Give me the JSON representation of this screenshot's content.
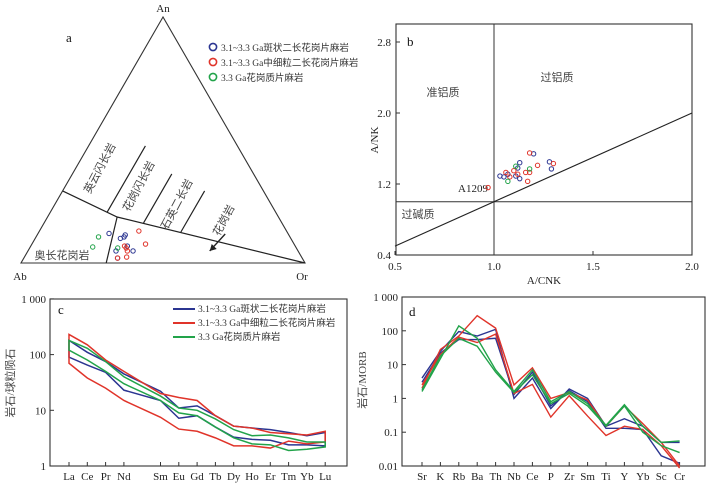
{
  "colors": {
    "blue": "#2b3591",
    "red": "#e0342a",
    "green": "#22a34a"
  },
  "legend": [
    "3.1~3.3 Ga斑状二长花岗片麻岩",
    "3.1~3.3 Ga中细粒二长花岗片麻岩",
    "3.3 Ga花岗质片麻岩"
  ],
  "chart_data": [
    {
      "panel": "a",
      "type": "scatter",
      "subtype": "ternary",
      "apices": {
        "top": "An",
        "left": "Ab",
        "right": "Or"
      },
      "field_labels": [
        "英云闪长岩",
        "花岗闪长岩",
        "石英二长岩",
        "花岗岩",
        "奥长花岗岩"
      ],
      "boundaries_An_Or": [
        [
          [
            0.293,
            0.0
          ],
          [
            0.187,
            0.245
          ],
          [
            0.0,
            1.0
          ]
        ],
        [
          [
            0.187,
            0.245
          ],
          [
            0.0,
            0.3
          ]
        ],
        [
          [
            0.207,
            0.2
          ],
          [
            0.476,
            0.2
          ]
        ],
        [
          [
            0.163,
            0.35
          ],
          [
            0.362,
            0.35
          ]
        ],
        [
          [
            0.126,
            0.5
          ],
          [
            0.293,
            0.5
          ]
        ]
      ],
      "arrow_An_Or": [
        [
          0.118,
          0.66
        ],
        [
          0.049,
          0.64
        ]
      ],
      "series": [
        {
          "name": "3.1~3.3 Ga斑状二长花岗片麻岩",
          "color": "blue",
          "points_An_Or": [
            [
              0.12,
              0.25
            ],
            [
              0.1,
              0.3
            ],
            [
              0.106,
              0.31
            ],
            [
              0.114,
              0.31
            ],
            [
              0.069,
              0.34
            ],
            [
              0.049,
              0.31
            ],
            [
              0.049,
              0.37
            ],
            [
              0.02,
              0.33
            ]
          ]
        },
        {
          "name": "3.1~3.3 Ga中细粒二长花岗片麻岩",
          "color": "red",
          "points_An_Or": [
            [
              0.13,
              0.35
            ],
            [
              0.077,
              0.4
            ],
            [
              0.069,
              0.33
            ],
            [
              0.061,
              0.34
            ],
            [
              0.049,
              0.35
            ],
            [
              0.024,
              0.36
            ],
            [
              0.02,
              0.33
            ]
          ]
        },
        {
          "name": "3.3 Ga花岗质片麻岩",
          "color": "green",
          "points_An_Or": [
            [
              0.106,
              0.22
            ],
            [
              0.065,
              0.22
            ],
            [
              0.061,
              0.31
            ]
          ]
        }
      ]
    },
    {
      "panel": "b",
      "type": "scatter",
      "xlabel": "A/CNK",
      "ylabel": "A/NK",
      "xlim": [
        0.5,
        2.0
      ],
      "ylim": [
        0.4,
        3.0
      ],
      "xticks": [
        "0.5",
        "1.0",
        "1.5",
        "2.0"
      ],
      "yticks": [
        "0.4",
        "1.2",
        "2.0",
        "2.8"
      ],
      "field_labels": [
        "准铝质",
        "过铝质",
        "过碱质"
      ],
      "annotation": "A1209",
      "series": [
        {
          "name": "3.1~3.3 Ga斑状二长花岗片麻岩",
          "color": "blue",
          "points": [
            [
              1.03,
              1.29
            ],
            [
              1.05,
              1.28
            ],
            [
              1.07,
              1.31
            ],
            [
              1.11,
              1.29
            ],
            [
              1.13,
              1.26
            ],
            [
              1.12,
              1.38
            ],
            [
              1.13,
              1.44
            ],
            [
              1.2,
              1.54
            ],
            [
              1.28,
              1.45
            ],
            [
              1.29,
              1.37
            ]
          ]
        },
        {
          "name": "3.1~3.3 Ga中细粒二长花岗片麻岩",
          "color": "red",
          "points": [
            [
              0.97,
              1.16
            ],
            [
              1.06,
              1.33
            ],
            [
              1.08,
              1.28
            ],
            [
              1.1,
              1.35
            ],
            [
              1.12,
              1.31
            ],
            [
              1.16,
              1.33
            ],
            [
              1.18,
              1.33
            ],
            [
              1.17,
              1.23
            ],
            [
              1.18,
              1.55
            ],
            [
              1.22,
              1.41
            ],
            [
              1.3,
              1.43
            ]
          ]
        },
        {
          "name": "3.3 Ga花岗质片麻岩",
          "color": "green",
          "points": [
            [
              1.11,
              1.4
            ],
            [
              1.18,
              1.37
            ],
            [
              1.07,
              1.23
            ]
          ]
        }
      ]
    },
    {
      "panel": "c",
      "type": "line",
      "yscale": "log",
      "ylabel": "岩石/球粒陨石",
      "ylim": [
        1,
        1000
      ],
      "yticks": [
        "1",
        "10",
        "100",
        "1 000"
      ],
      "categories": [
        "La",
        "Ce",
        "Pr",
        "Nd",
        "Sm",
        "Eu",
        "Gd",
        "Tb",
        "Dy",
        "Ho",
        "Er",
        "Tm",
        "Yb",
        "Lu"
      ],
      "positions": [
        0,
        1,
        2,
        3,
        5,
        6,
        7,
        8,
        9,
        10,
        11,
        12,
        13,
        14
      ],
      "series": [
        {
          "name": "3.1~3.3 Ga斑状二长花岗片麻岩",
          "color": "blue",
          "upper": [
            180,
            110,
            75,
            45,
            22,
            11,
            12,
            8,
            5.2,
            4.8,
            4.5,
            4,
            3.5,
            4
          ],
          "lower": [
            90,
            65,
            48,
            23,
            15,
            7.2,
            8,
            5,
            3.3,
            3,
            2.9,
            2.4,
            2.4,
            2.3
          ]
        },
        {
          "name": "3.1~3.3 Ga中细粒二长花岗片麻岩",
          "color": "red",
          "upper": [
            230,
            150,
            80,
            50,
            20,
            17,
            15,
            8,
            5.2,
            4.8,
            4,
            3.8,
            3.6,
            4.2
          ],
          "lower": [
            70,
            38,
            25,
            15,
            7.5,
            4.6,
            4.2,
            3.2,
            2.3,
            2.3,
            2.1,
            2.8,
            2.5,
            2.7
          ]
        },
        {
          "name": "3.3 Ga花岗质片麻岩",
          "color": "green",
          "upper": [
            180,
            130,
            75,
            40,
            18,
            11,
            10,
            7,
            4.5,
            3.5,
            3.6,
            3.2,
            2.7,
            2.7
          ],
          "lower": [
            120,
            80,
            50,
            30,
            15,
            9,
            8,
            5,
            3.2,
            2.5,
            2.4,
            1.9,
            2,
            2.2
          ]
        }
      ]
    },
    {
      "panel": "d",
      "type": "line",
      "yscale": "log",
      "ylabel": "岩石/MORB",
      "ylim": [
        0.01,
        1000
      ],
      "yticks": [
        "0.01",
        "0.1",
        "1",
        "10",
        "100",
        "1 000"
      ],
      "categories": [
        "Sr",
        "K",
        "Rb",
        "Ba",
        "Th",
        "Nb",
        "Ce",
        "P",
        "Zr",
        "Sm",
        "Ti",
        "Y",
        "Yb",
        "Sc",
        "Cr"
      ],
      "series": [
        {
          "name": "blue-1",
          "color": "blue",
          "values": [
            4,
            25,
            95,
            70,
            110,
            1.0,
            4,
            0.5,
            1.9,
            1.0,
            0.15,
            0.25,
            0.15,
            0.05,
            0.05
          ]
        },
        {
          "name": "blue-2",
          "color": "blue",
          "values": [
            3,
            22,
            55,
            55,
            60,
            1.3,
            6,
            0.6,
            1.7,
            0.8,
            0.13,
            0.13,
            0.12,
            0.02,
            0.012
          ]
        },
        {
          "name": "red-1",
          "color": "red",
          "values": [
            2,
            28,
            70,
            280,
            120,
            2.5,
            8,
            1.0,
            1.5,
            0.9,
            0.15,
            0.6,
            0.18,
            0.05,
            0.01
          ]
        },
        {
          "name": "red-2",
          "color": "red",
          "values": [
            2.5,
            20,
            65,
            45,
            80,
            1.4,
            2.6,
            0.28,
            1.2,
            0.3,
            0.08,
            0.15,
            0.12,
            0.04,
            0.008
          ]
        },
        {
          "name": "green-1",
          "color": "green",
          "values": [
            1.6,
            15,
            140,
            60,
            7,
            1.6,
            7,
            0.8,
            1.6,
            0.7,
            0.16,
            0.65,
            0.15,
            0.05,
            0.055
          ]
        },
        {
          "name": "green-2",
          "color": "green",
          "values": [
            1.8,
            18,
            60,
            35,
            6,
            1.5,
            5,
            0.7,
            1.4,
            0.6,
            0.15,
            0.6,
            0.1,
            0.04,
            0.025
          ]
        }
      ]
    }
  ]
}
